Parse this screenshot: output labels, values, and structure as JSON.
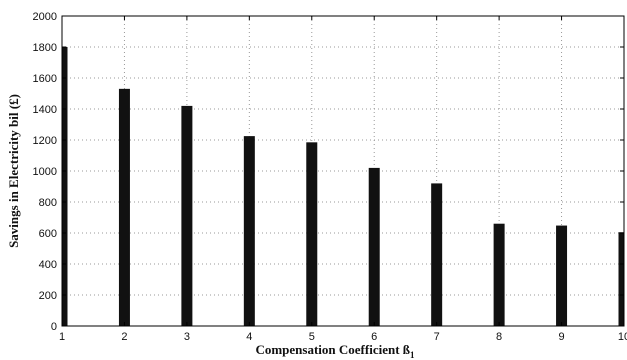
{
  "chart_data": {
    "type": "bar",
    "title": "",
    "xlabel_main": "Compensation Coefficient ß",
    "xlabel_sub": "1",
    "ylabel": "Savings in Electricity bil (£)",
    "categories": [
      "1",
      "2",
      "3",
      "4",
      "5",
      "6",
      "7",
      "8",
      "9",
      "10"
    ],
    "x": [
      1,
      2,
      3,
      4,
      5,
      6,
      7,
      8,
      9,
      10
    ],
    "values": [
      1800,
      1530,
      1420,
      1225,
      1185,
      1020,
      920,
      660,
      648,
      605
    ],
    "xlim": [
      1,
      10
    ],
    "ylim": [
      0,
      2000
    ],
    "yticks": [
      "0",
      "200",
      "400",
      "600",
      "800",
      "1000",
      "1200",
      "1400",
      "1600",
      "1800",
      "2000"
    ],
    "grid": true,
    "bar_color": "#111111",
    "grid_color": "#999999"
  }
}
